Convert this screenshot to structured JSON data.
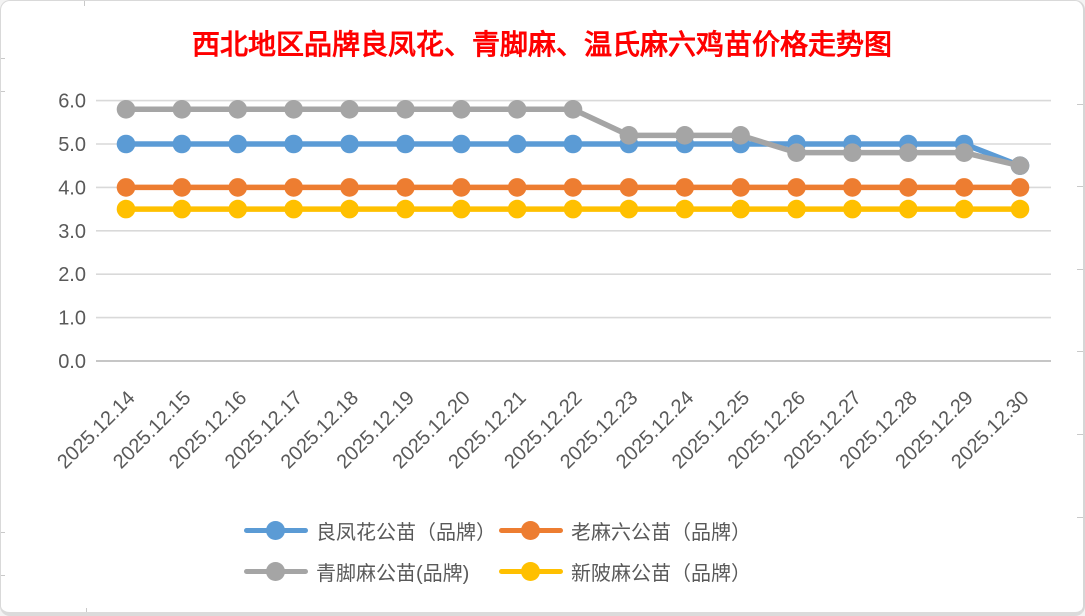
{
  "window": {
    "background": "#FFFFFF",
    "border_color": "#D9D9D9"
  },
  "title": {
    "text": "西北地区品牌良凤花、青脚麻、温氏麻六鸡苗价格走势图",
    "color": "#FF0000"
  },
  "axis_style": {
    "text_color": "#595959",
    "gridline_color": "#D9D9D9",
    "baseline_color": "#C6C6C6"
  },
  "chart_data": {
    "type": "line",
    "title": "西北地区品牌良凤花、青脚麻、温氏麻六鸡苗价格走势图",
    "xlabel": "",
    "ylabel": "",
    "ylim": [
      0.0,
      6.0
    ],
    "ytick_step": 1.0,
    "ytick_labels": [
      "0.0",
      "1.0",
      "2.0",
      "3.0",
      "4.0",
      "5.0",
      "6.0"
    ],
    "grid": true,
    "legend_position": "bottom",
    "categories": [
      "2025.12.14",
      "2025.12.15",
      "2025.12.16",
      "2025.12.17",
      "2025.12.18",
      "2025.12.19",
      "2025.12.20",
      "2025.12.21",
      "2025.12.22",
      "2025.12.23",
      "2025.12.24",
      "2025.12.25",
      "2025.12.26",
      "2025.12.27",
      "2025.12.28",
      "2025.12.29",
      "2025.12.30"
    ],
    "series": [
      {
        "name": "良凤花公苗（品牌）",
        "color": "#5B9BD5",
        "values": [
          5.0,
          5.0,
          5.0,
          5.0,
          5.0,
          5.0,
          5.0,
          5.0,
          5.0,
          5.0,
          5.0,
          5.0,
          5.0,
          5.0,
          5.0,
          5.0,
          4.5
        ]
      },
      {
        "name": "老麻六公苗（品牌）",
        "color": "#ED7D31",
        "values": [
          4.0,
          4.0,
          4.0,
          4.0,
          4.0,
          4.0,
          4.0,
          4.0,
          4.0,
          4.0,
          4.0,
          4.0,
          4.0,
          4.0,
          4.0,
          4.0,
          4.0
        ]
      },
      {
        "name": "青脚麻公苗(品牌)",
        "color": "#A5A5A5",
        "values": [
          5.8,
          5.8,
          5.8,
          5.8,
          5.8,
          5.8,
          5.8,
          5.8,
          5.8,
          5.2,
          5.2,
          5.2,
          4.8,
          4.8,
          4.8,
          4.8,
          4.5
        ]
      },
      {
        "name": "新陂麻公苗（品牌）",
        "color": "#FFC000",
        "values": [
          3.5,
          3.5,
          3.5,
          3.5,
          3.5,
          3.5,
          3.5,
          3.5,
          3.5,
          3.5,
          3.5,
          3.5,
          3.5,
          3.5,
          3.5,
          3.5,
          3.5
        ]
      }
    ]
  }
}
